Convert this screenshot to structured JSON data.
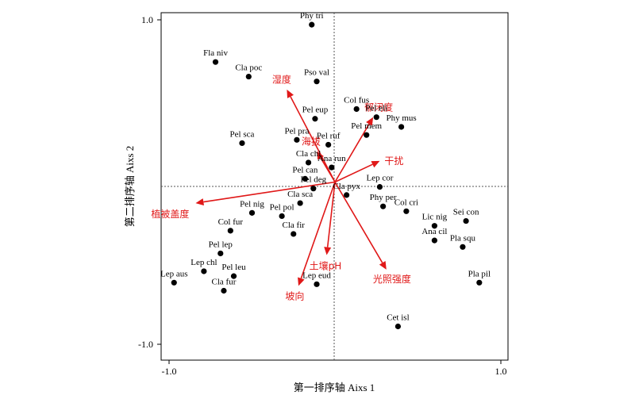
{
  "chart_data": {
    "type": "scatter",
    "xlabel": "第一排序轴 Aixs 1",
    "ylabel": "第二排序轴 Aixs 2",
    "xlim": [
      -1.0,
      1.0
    ],
    "ylim": [
      -1.0,
      1.0
    ],
    "x_tick_labels": [
      "-1.0",
      "1.0"
    ],
    "y_tick_labels": [
      "1.0",
      "-1.0"
    ],
    "grid": false,
    "reference_lines": "dotted lines at x=0 and y=0",
    "colors": {
      "points": "#000000",
      "arrows": "#e01818",
      "env_labels": "#e01818"
    },
    "species": [
      {
        "name": "Phy tri",
        "x": -0.14,
        "y": 0.97
      },
      {
        "name": "Fla niv",
        "x": -0.72,
        "y": 0.74
      },
      {
        "name": "Cla poc",
        "x": -0.52,
        "y": 0.65
      },
      {
        "name": "Pso val",
        "x": -0.11,
        "y": 0.62
      },
      {
        "name": "Col fus",
        "x": 0.13,
        "y": 0.45
      },
      {
        "name": "Pel eli",
        "x": 0.25,
        "y": 0.4
      },
      {
        "name": "Phy mus",
        "x": 0.4,
        "y": 0.34
      },
      {
        "name": "Pel eup",
        "x": -0.12,
        "y": 0.39
      },
      {
        "name": "Pel mem",
        "x": 0.19,
        "y": 0.29
      },
      {
        "name": "Pel pra",
        "x": -0.23,
        "y": 0.26
      },
      {
        "name": "Pel sca",
        "x": -0.56,
        "y": 0.24
      },
      {
        "name": "Pel ruf",
        "x": -0.04,
        "y": 0.23
      },
      {
        "name": "Cla chl",
        "x": -0.16,
        "y": 0.12
      },
      {
        "name": "Ana run",
        "x": -0.02,
        "y": 0.09
      },
      {
        "name": "Pel can",
        "x": -0.18,
        "y": 0.02
      },
      {
        "name": "Pel deg",
        "x": -0.13,
        "y": -0.04
      },
      {
        "name": "Cla pyx",
        "x": 0.07,
        "y": -0.08
      },
      {
        "name": "Lep cor",
        "x": 0.27,
        "y": -0.03
      },
      {
        "name": "Cla sca",
        "x": -0.21,
        "y": -0.13
      },
      {
        "name": "Phy per",
        "x": 0.29,
        "y": -0.15
      },
      {
        "name": "Col cri",
        "x": 0.43,
        "y": -0.18
      },
      {
        "name": "Pel nig",
        "x": -0.5,
        "y": -0.19
      },
      {
        "name": "Pel pol",
        "x": -0.32,
        "y": -0.21
      },
      {
        "name": "Sei con",
        "x": 0.79,
        "y": -0.24
      },
      {
        "name": "Lic nig",
        "x": 0.6,
        "y": -0.27
      },
      {
        "name": "Col fur",
        "x": -0.63,
        "y": -0.3
      },
      {
        "name": "Cla fir",
        "x": -0.25,
        "y": -0.32
      },
      {
        "name": "Ana cil",
        "x": 0.6,
        "y": -0.36
      },
      {
        "name": "Pla squ",
        "x": 0.77,
        "y": -0.4
      },
      {
        "name": "Pel lep",
        "x": -0.69,
        "y": -0.44
      },
      {
        "name": "Lep chl",
        "x": -0.79,
        "y": -0.55
      },
      {
        "name": "Pel leu",
        "x": -0.61,
        "y": -0.58
      },
      {
        "name": "Lep aus",
        "x": -0.97,
        "y": -0.62
      },
      {
        "name": "Cla fur",
        "x": -0.67,
        "y": -0.67
      },
      {
        "name": "Lep eud",
        "x": -0.11,
        "y": -0.63
      },
      {
        "name": "Pla pil",
        "x": 0.87,
        "y": -0.62
      },
      {
        "name": "Cet isl",
        "x": 0.38,
        "y": -0.89
      }
    ],
    "environment_vectors": [
      {
        "name": "湿度",
        "x": -0.29,
        "y": 0.57
      },
      {
        "name": "郁闭度",
        "x": 0.23,
        "y": 0.4
      },
      {
        "name": "海拔",
        "x": -0.11,
        "y": 0.19
      },
      {
        "name": "干扰",
        "x": 0.27,
        "y": 0.13
      },
      {
        "name": "植被盖度",
        "x": -0.84,
        "y": -0.13
      },
      {
        "name": "土壤pH",
        "x": -0.05,
        "y": -0.45
      },
      {
        "name": "光照强度",
        "x": 0.31,
        "y": -0.54
      },
      {
        "name": "坡向",
        "x": -0.22,
        "y": -0.64
      }
    ]
  }
}
